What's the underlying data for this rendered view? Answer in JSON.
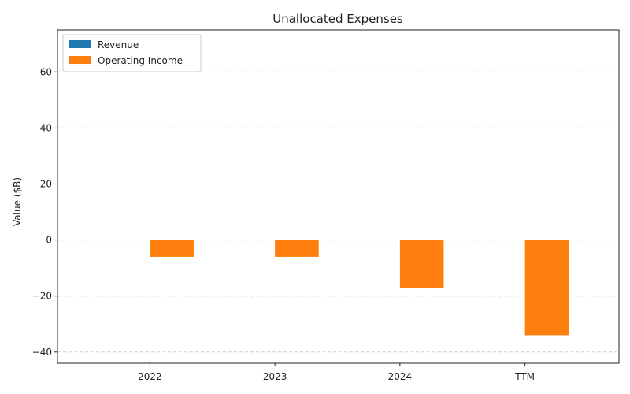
{
  "chart_data": {
    "type": "bar",
    "title": "Unallocated Expenses",
    "xlabel": "",
    "ylabel": "Value ($B)",
    "categories": [
      "2022",
      "2023",
      "2024",
      "TTM"
    ],
    "series": [
      {
        "name": "Revenue",
        "values": [
          0,
          0,
          0,
          0
        ],
        "color": "#1f77b4"
      },
      {
        "name": "Operating Income",
        "values": [
          -6,
          -6,
          -17,
          -34
        ],
        "color": "#ff7f0e"
      }
    ],
    "ylim": [
      -44,
      75
    ],
    "yticks": [
      -40,
      -20,
      0,
      20,
      40,
      60
    ],
    "ytick_labels": [
      "−40",
      "−20",
      "0",
      "20",
      "40",
      "60"
    ],
    "grid": "y-dashed",
    "legend_position": "top-left"
  }
}
